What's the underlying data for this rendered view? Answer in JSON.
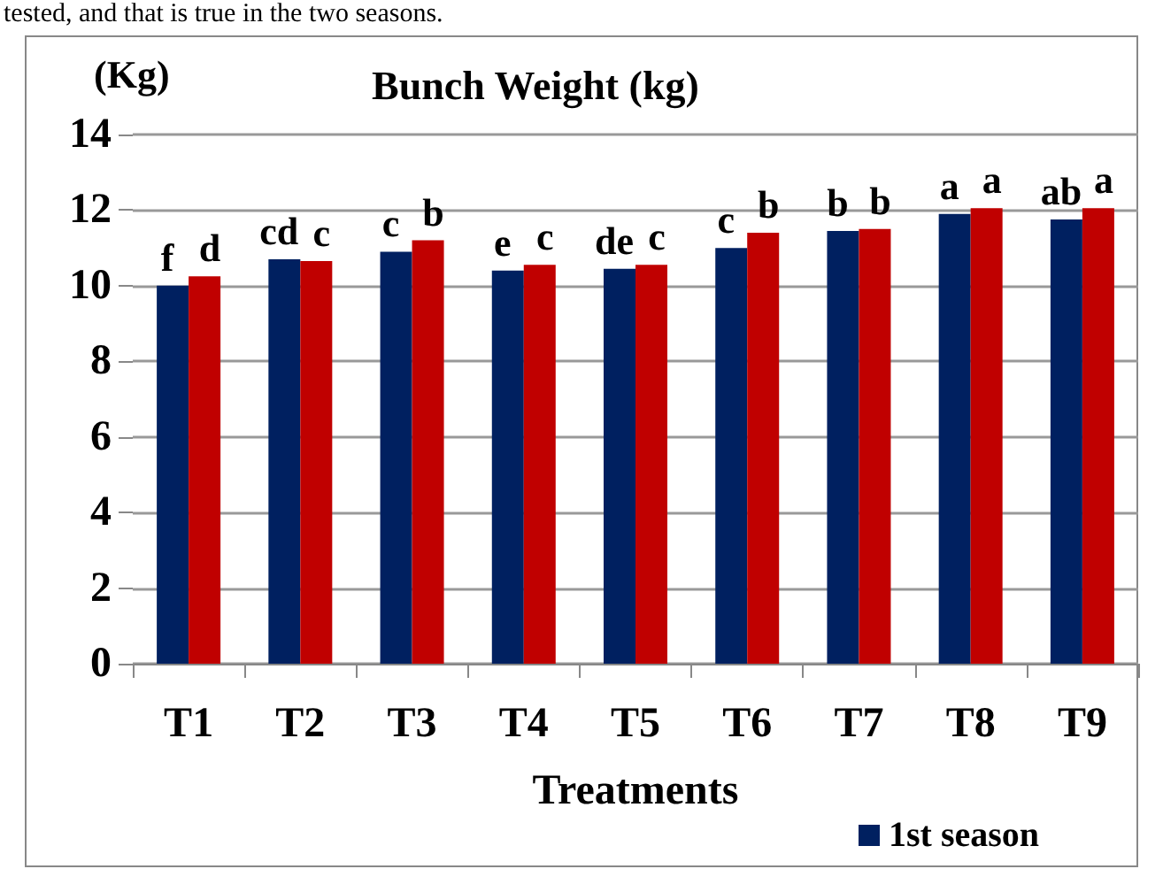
{
  "chart_data": {
    "type": "bar",
    "title": "Bunch Weight (kg)",
    "ylabel": "(Kg)",
    "xlabel": "Treatments",
    "annotations": [
      "tested, and that is true in the two seasons."
    ],
    "categories": [
      "T1",
      "T2",
      "T3",
      "T4",
      "T5",
      "T6",
      "T7",
      "T8",
      "T9"
    ],
    "series": [
      {
        "name": "1st season",
        "color": "#002060",
        "values": [
          10.0,
          10.7,
          10.9,
          10.4,
          10.45,
          11.0,
          11.45,
          11.9,
          11.75
        ],
        "value_labels": [
          "f",
          "cd",
          "c",
          "e",
          "de",
          "c",
          "b",
          "a",
          "ab"
        ]
      },
      {
        "color": "#c00000",
        "values": [
          10.25,
          10.65,
          11.2,
          10.55,
          10.55,
          11.4,
          11.5,
          12.05,
          12.05
        ],
        "value_labels": [
          "d",
          "c",
          "b",
          "c",
          "c",
          "b",
          "b",
          "a",
          "a"
        ]
      }
    ],
    "ylim": [
      0,
      14
    ],
    "yticks": [
      0,
      2,
      4,
      6,
      8,
      10,
      12,
      14
    ],
    "grid": "y",
    "legend": "bottom"
  }
}
